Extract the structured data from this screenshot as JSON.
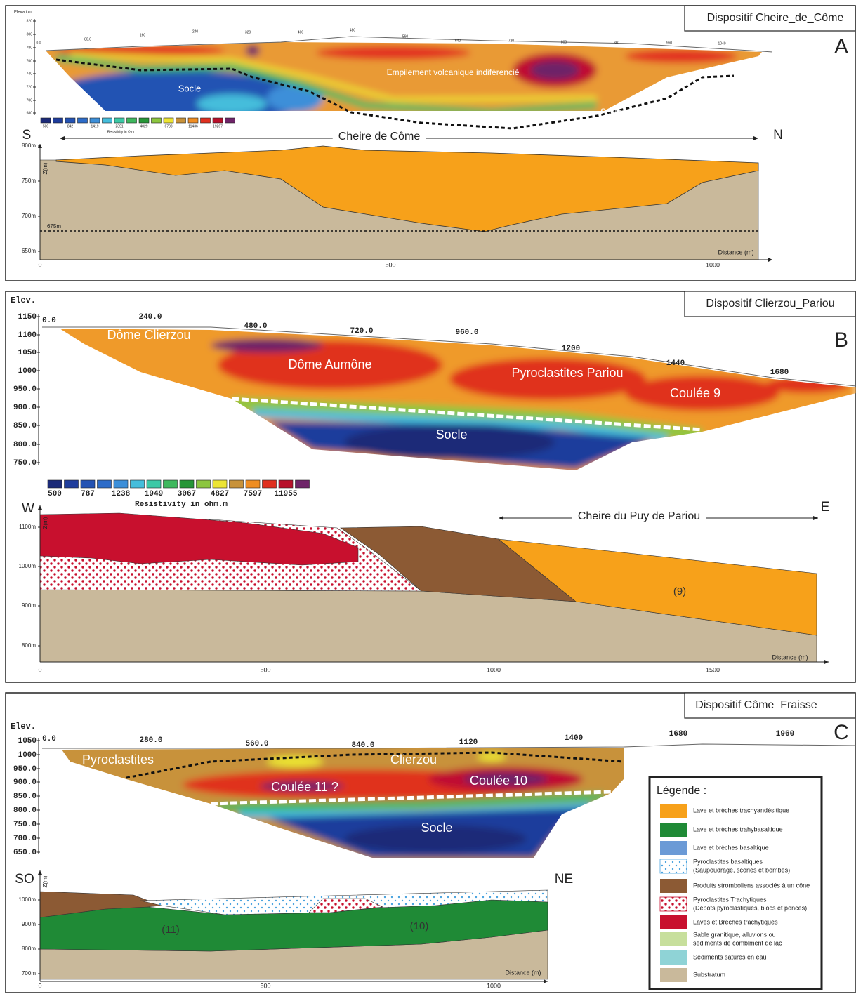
{
  "panels": [
    {
      "letter": "A",
      "title": "Dispositif Cheire_de_Côme",
      "ert": {
        "y_label": "Elevation",
        "y_ticks": [
          "820",
          "800",
          "780",
          "760",
          "740",
          "720",
          "700",
          "680"
        ],
        "profile_ticks": [
          "0.0",
          "80.0",
          "160",
          "240",
          "320",
          "400",
          "480",
          "560",
          "640",
          "720",
          "800",
          "880",
          "960",
          "1040"
        ],
        "labels": [
          "Empilement volcanique indiférencié",
          "Socle",
          "Socle"
        ],
        "colorbar_ticks": [
          "500",
          "842",
          "1419",
          "2391",
          "4029",
          "6788",
          "11436",
          "19267"
        ],
        "colorbar_label": "Resistivity in Ω.m"
      },
      "section": {
        "left": "S",
        "right": "N",
        "direction": "Cheire de Côme",
        "y_label": "Z(m)",
        "y_ticks": [
          "800m",
          "750m",
          "700m",
          "650m"
        ],
        "x_ticks": [
          "0",
          "500",
          "1000"
        ],
        "x_label": "Distance (m)",
        "annotations": [
          "675m"
        ]
      }
    },
    {
      "letter": "B",
      "title": "Dispositif Clierzou_Pariou",
      "ert": {
        "y_label": "Elev.",
        "y_ticks": [
          "1150",
          "1100",
          "1050",
          "1000",
          "950.0",
          "900.0",
          "850.0",
          "800.0",
          "750.0"
        ],
        "profile_ticks": [
          "0.0",
          "240.0",
          "480.0",
          "720.0",
          "960.0",
          "1200",
          "1440",
          "1680"
        ],
        "labels": [
          "Dôme Clierzou",
          "Dôme Aumône",
          "Pyroclastites Pariou",
          "Coulée 9",
          "Socle"
        ],
        "colorbar_ticks": [
          "500",
          "787",
          "1238",
          "1949",
          "3067",
          "4827",
          "7597",
          "11955"
        ],
        "colorbar_label": "Resistivity in ohm.m"
      },
      "section": {
        "left": "W",
        "right": "E",
        "direction": "Cheire du Puy de Pariou",
        "y_label": "Z(m)",
        "y_ticks": [
          "1100m",
          "1000m",
          "900m",
          "800m"
        ],
        "x_ticks": [
          "0",
          "500",
          "1000",
          "1500"
        ],
        "x_label": "Distance (m)",
        "annotations": [
          "(9)"
        ]
      }
    },
    {
      "letter": "C",
      "title": "Dispositif Côme_Fraisse",
      "ert": {
        "y_label": "Elev.",
        "y_ticks": [
          "1050",
          "1000",
          "950.0",
          "900.0",
          "850.0",
          "800.0",
          "750.0",
          "700.0",
          "650.0"
        ],
        "profile_ticks": [
          "0.0",
          "280.0",
          "560.0",
          "840.0",
          "1120",
          "1400",
          "1680",
          "1960"
        ],
        "labels": [
          "Pyroclastites",
          "Clierzou",
          "Coulée 11 ?",
          "Coulée 10",
          "Socle"
        ]
      },
      "section": {
        "left": "SO",
        "right": "NE",
        "y_label": "Z(m)",
        "y_ticks": [
          "1000m",
          "900m",
          "800m",
          "700m"
        ],
        "x_ticks": [
          "0",
          "500",
          "1000"
        ],
        "x_label": "Distance (m)",
        "annotations": [
          "(11)",
          "(10)"
        ]
      }
    }
  ],
  "colorbar_colors": [
    "#1b2a78",
    "#1f3d9c",
    "#2352b3",
    "#2d6cc9",
    "#3c8fd9",
    "#45bddb",
    "#3cc9a6",
    "#3fb85e",
    "#269637",
    "#8cc63f",
    "#ece433",
    "#c8923a",
    "#ef8d22",
    "#e0301f",
    "#b8102a",
    "#6e2468"
  ],
  "legend": {
    "title": "Légende :",
    "items": [
      {
        "lines": [
          "Lave et brèches trachyandésitique"
        ],
        "color": "#f7a11a"
      },
      {
        "lines": [
          "Lave et brèches trahybasaltique"
        ],
        "color": "#1f8a36"
      },
      {
        "lines": [
          "Lave et brèches basaltique"
        ],
        "color": "#6b9ad6"
      },
      {
        "lines": [
          "Pyroclastites basaltiques",
          "(Saupoudrage, scories et bombes)"
        ],
        "color": "#4aa3df",
        "pattern": "dots"
      },
      {
        "lines": [
          "Produits stromboliens associés à un cône"
        ],
        "color": "#8c5a34"
      },
      {
        "lines": [
          "Pyroclastites Trachytiques",
          "(Dépots pyroclastiques, blocs et ponces)"
        ],
        "color": "#c8102e",
        "pattern": "dots"
      },
      {
        "lines": [
          "Laves et Brèches trachytiques"
        ],
        "color": "#c8102e"
      },
      {
        "lines": [
          "Sable granitique, alluvions ou",
          "sédiments de comblment de lac"
        ],
        "color": "#c7df9c"
      },
      {
        "lines": [
          "Sédiments saturés en eau"
        ],
        "color": "#8fd3d6"
      },
      {
        "lines": [
          "Substratum"
        ],
        "color": "#c9b99b"
      }
    ]
  }
}
